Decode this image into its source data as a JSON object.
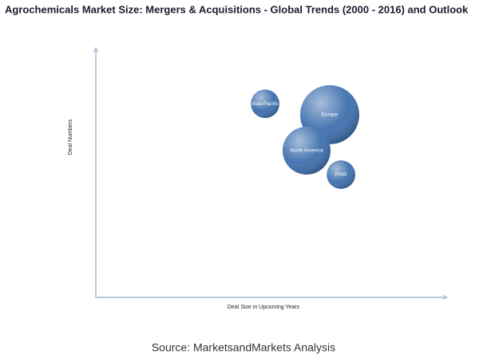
{
  "chart_data": {
    "type": "bubble",
    "title": "Agrochemicals Market Size: Mergers & Acquisitions - Global Trends (2000 - 2016) and Outlook",
    "x_label": "Deal Size in Upcoming Years",
    "y_label": "Deal Numbers",
    "source": "Source: MarketsandMarkets Analysis",
    "categories": [
      "Asia-Pacific",
      "Europe",
      "North America",
      "RoW"
    ],
    "x": [
      48.2,
      66.6,
      60,
      69.8
    ],
    "values": [
      77.6,
      73.2,
      58.8,
      49.2
    ],
    "sizes": [
      32,
      137,
      90,
      32
    ],
    "color": "#3d6fae",
    "xlim": [
      0,
      100
    ],
    "ylim": [
      0,
      100
    ]
  }
}
